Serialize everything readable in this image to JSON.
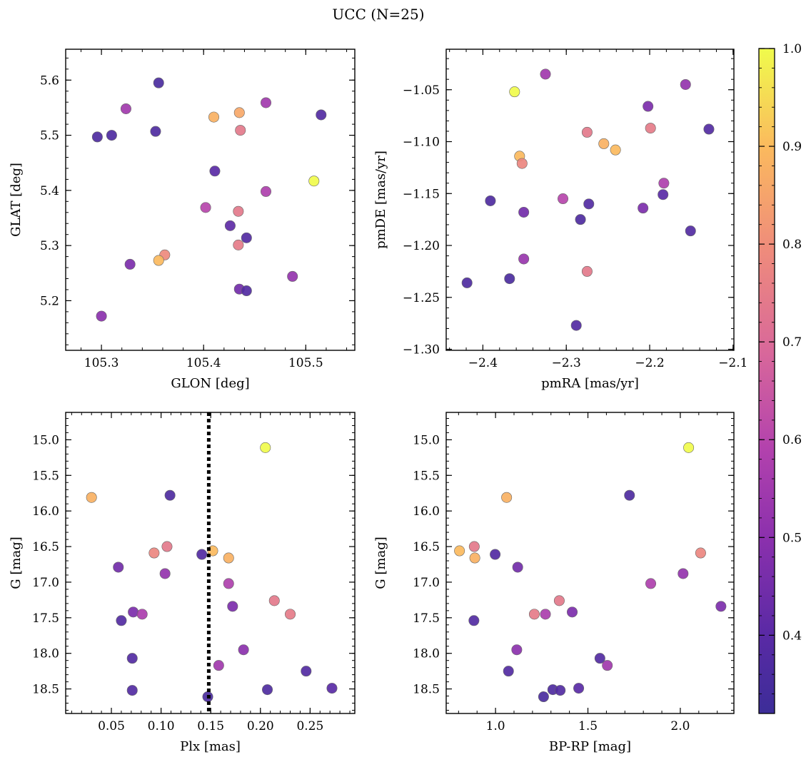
{
  "figure": {
    "title": "UCC (N=25)"
  },
  "colorbar": {
    "min": 0.32,
    "max": 1.0,
    "ticks": [
      0.4,
      0.5,
      0.6,
      0.7,
      0.8,
      0.9,
      1.0
    ],
    "tick_labels": [
      "0.4",
      "0.5",
      "0.6",
      "0.7",
      "0.8",
      "0.9",
      "1.0"
    ],
    "colormap": "plasma"
  },
  "chart_data": [
    {
      "type": "scatter",
      "id": "glon-glat",
      "title": "",
      "xlabel": "GLON [deg]",
      "ylabel": "GLAT [deg]",
      "xlim": [
        105.265,
        105.548
      ],
      "ylim": [
        5.11,
        5.656
      ],
      "invert_y": false,
      "xticks": [
        105.3,
        105.4,
        105.5
      ],
      "xtick_labels": [
        "105.3",
        "105.4",
        "105.5"
      ],
      "yticks": [
        5.2,
        5.3,
        5.4,
        5.5,
        5.6
      ],
      "ytick_labels": [
        "5.2",
        "5.3",
        "5.4",
        "5.5",
        "5.6"
      ],
      "x_minor_step": 0.02,
      "y_minor_step": 0.02,
      "points": [
        {
          "x": 105.356,
          "y": 5.595,
          "p": 0.36
        },
        {
          "x": 105.324,
          "y": 5.548,
          "p": 0.55
        },
        {
          "x": 105.296,
          "y": 5.497,
          "p": 0.37
        },
        {
          "x": 105.31,
          "y": 5.5,
          "p": 0.37
        },
        {
          "x": 105.353,
          "y": 5.507,
          "p": 0.37
        },
        {
          "x": 105.41,
          "y": 5.533,
          "p": 0.88
        },
        {
          "x": 105.435,
          "y": 5.541,
          "p": 0.86
        },
        {
          "x": 105.436,
          "y": 5.509,
          "p": 0.74
        },
        {
          "x": 105.461,
          "y": 5.559,
          "p": 0.55
        },
        {
          "x": 105.515,
          "y": 5.537,
          "p": 0.38
        },
        {
          "x": 105.411,
          "y": 5.435,
          "p": 0.4
        },
        {
          "x": 105.508,
          "y": 5.417,
          "p": 1.0
        },
        {
          "x": 105.461,
          "y": 5.398,
          "p": 0.58
        },
        {
          "x": 105.402,
          "y": 5.369,
          "p": 0.6
        },
        {
          "x": 105.434,
          "y": 5.362,
          "p": 0.74
        },
        {
          "x": 105.426,
          "y": 5.336,
          "p": 0.41
        },
        {
          "x": 105.442,
          "y": 5.314,
          "p": 0.38
        },
        {
          "x": 105.434,
          "y": 5.301,
          "p": 0.75
        },
        {
          "x": 105.362,
          "y": 5.283,
          "p": 0.79
        },
        {
          "x": 105.356,
          "y": 5.273,
          "p": 0.9
        },
        {
          "x": 105.328,
          "y": 5.266,
          "p": 0.47
        },
        {
          "x": 105.487,
          "y": 5.244,
          "p": 0.52
        },
        {
          "x": 105.435,
          "y": 5.221,
          "p": 0.45
        },
        {
          "x": 105.442,
          "y": 5.218,
          "p": 0.38
        },
        {
          "x": 105.3,
          "y": 5.172,
          "p": 0.5
        }
      ]
    },
    {
      "type": "scatter",
      "id": "pmra-pmde",
      "title": "",
      "xlabel": "pmRA [mas/yr]",
      "ylabel": "pmDE [mas/yr]",
      "xlim": [
        -2.444,
        -2.099
      ],
      "ylim": [
        -1.301,
        -1.011
      ],
      "invert_y": false,
      "xticks": [
        -2.4,
        -2.3,
        -2.2,
        -2.1
      ],
      "xtick_labels": [
        "−2.4",
        "−2.3",
        "−2.2",
        "−2.1"
      ],
      "yticks": [
        -1.3,
        -1.25,
        -1.2,
        -1.15,
        -1.1,
        -1.05
      ],
      "ytick_labels": [
        "−1.30",
        "−1.25",
        "−1.20",
        "−1.15",
        "−1.10",
        "−1.05"
      ],
      "x_minor_step": 0.02,
      "y_minor_step": 0.01,
      "points": [
        {
          "x": -2.325,
          "y": -1.035,
          "p": 0.55
        },
        {
          "x": -2.362,
          "y": -1.052,
          "p": 1.0
        },
        {
          "x": -2.157,
          "y": -1.045,
          "p": 0.52
        },
        {
          "x": -2.202,
          "y": -1.066,
          "p": 0.47
        },
        {
          "x": -2.275,
          "y": -1.091,
          "p": 0.74
        },
        {
          "x": -2.199,
          "y": -1.087,
          "p": 0.75
        },
        {
          "x": -2.129,
          "y": -1.088,
          "p": 0.38
        },
        {
          "x": -2.255,
          "y": -1.102,
          "p": 0.88
        },
        {
          "x": -2.241,
          "y": -1.108,
          "p": 0.9
        },
        {
          "x": -2.356,
          "y": -1.114,
          "p": 0.9
        },
        {
          "x": -2.353,
          "y": -1.121,
          "p": 0.78
        },
        {
          "x": -2.183,
          "y": -1.14,
          "p": 0.58
        },
        {
          "x": -2.391,
          "y": -1.157,
          "p": 0.37
        },
        {
          "x": -2.304,
          "y": -1.155,
          "p": 0.6
        },
        {
          "x": -2.273,
          "y": -1.16,
          "p": 0.38
        },
        {
          "x": -2.184,
          "y": -1.151,
          "p": 0.4
        },
        {
          "x": -2.351,
          "y": -1.168,
          "p": 0.45
        },
        {
          "x": -2.208,
          "y": -1.164,
          "p": 0.47
        },
        {
          "x": -2.283,
          "y": -1.175,
          "p": 0.37
        },
        {
          "x": -2.151,
          "y": -1.186,
          "p": 0.38
        },
        {
          "x": -2.351,
          "y": -1.213,
          "p": 0.53
        },
        {
          "x": -2.275,
          "y": -1.225,
          "p": 0.74
        },
        {
          "x": -2.419,
          "y": -1.236,
          "p": 0.37
        },
        {
          "x": -2.368,
          "y": -1.232,
          "p": 0.36
        },
        {
          "x": -2.288,
          "y": -1.277,
          "p": 0.38
        }
      ]
    },
    {
      "type": "scatter",
      "id": "plx-g",
      "title": "",
      "xlabel": "Plx [mas]",
      "ylabel": "G [mag]",
      "xlim": [
        0.004,
        0.295
      ],
      "ylim": [
        18.845,
        14.615
      ],
      "invert_y": true,
      "xticks": [
        0.05,
        0.1,
        0.15,
        0.2,
        0.25
      ],
      "xtick_labels": [
        "0.05",
        "0.10",
        "0.15",
        "0.20",
        "0.25"
      ],
      "yticks": [
        15.0,
        15.5,
        16.0,
        16.5,
        17.0,
        17.5,
        18.0,
        18.5
      ],
      "ytick_labels": [
        "15.0",
        "15.5",
        "16.0",
        "16.5",
        "17.0",
        "17.5",
        "18.0",
        "18.5"
      ],
      "x_minor_step": 0.01,
      "y_minor_step": 0.1,
      "vline": {
        "x": 0.148
      },
      "points": [
        {
          "x": 0.205,
          "y": 15.11,
          "p": 1.0
        },
        {
          "x": 0.03,
          "y": 15.81,
          "p": 0.88
        },
        {
          "x": 0.109,
          "y": 15.78,
          "p": 0.37
        },
        {
          "x": 0.106,
          "y": 16.5,
          "p": 0.74
        },
        {
          "x": 0.093,
          "y": 16.59,
          "p": 0.78
        },
        {
          "x": 0.141,
          "y": 16.61,
          "p": 0.38
        },
        {
          "x": 0.152,
          "y": 16.56,
          "p": 0.9
        },
        {
          "x": 0.168,
          "y": 16.66,
          "p": 0.88
        },
        {
          "x": 0.057,
          "y": 16.79,
          "p": 0.45
        },
        {
          "x": 0.104,
          "y": 16.88,
          "p": 0.52
        },
        {
          "x": 0.168,
          "y": 17.02,
          "p": 0.58
        },
        {
          "x": 0.214,
          "y": 17.26,
          "p": 0.74
        },
        {
          "x": 0.172,
          "y": 17.34,
          "p": 0.47
        },
        {
          "x": 0.072,
          "y": 17.42,
          "p": 0.47
        },
        {
          "x": 0.081,
          "y": 17.45,
          "p": 0.57
        },
        {
          "x": 0.23,
          "y": 17.45,
          "p": 0.75
        },
        {
          "x": 0.06,
          "y": 17.54,
          "p": 0.38
        },
        {
          "x": 0.183,
          "y": 17.95,
          "p": 0.5
        },
        {
          "x": 0.071,
          "y": 18.07,
          "p": 0.38
        },
        {
          "x": 0.158,
          "y": 18.17,
          "p": 0.55
        },
        {
          "x": 0.246,
          "y": 18.25,
          "p": 0.38
        },
        {
          "x": 0.071,
          "y": 18.52,
          "p": 0.38
        },
        {
          "x": 0.207,
          "y": 18.51,
          "p": 0.37
        },
        {
          "x": 0.272,
          "y": 18.49,
          "p": 0.4
        },
        {
          "x": 0.147,
          "y": 18.61,
          "p": 0.36
        }
      ]
    },
    {
      "type": "scatter",
      "id": "bprp-g",
      "title": "",
      "xlabel": "BP-RP [mag]",
      "ylabel": "G [mag]",
      "xlim": [
        0.733,
        2.29
      ],
      "ylim": [
        18.845,
        14.615
      ],
      "invert_y": true,
      "xticks": [
        1.0,
        1.5,
        2.0
      ],
      "xtick_labels": [
        "1.0",
        "1.5",
        "2.0"
      ],
      "yticks": [
        15.0,
        15.5,
        16.0,
        16.5,
        17.0,
        17.5,
        18.0,
        18.5
      ],
      "ytick_labels": [
        "15.0",
        "15.5",
        "16.0",
        "16.5",
        "17.0",
        "17.5",
        "18.0",
        "18.5"
      ],
      "x_minor_step": 0.1,
      "y_minor_step": 0.1,
      "points": [
        {
          "x": 2.045,
          "y": 15.11,
          "p": 1.0
        },
        {
          "x": 1.06,
          "y": 15.81,
          "p": 0.88
        },
        {
          "x": 1.725,
          "y": 15.78,
          "p": 0.37
        },
        {
          "x": 0.885,
          "y": 16.5,
          "p": 0.74
        },
        {
          "x": 0.805,
          "y": 16.56,
          "p": 0.9
        },
        {
          "x": 0.888,
          "y": 16.66,
          "p": 0.88
        },
        {
          "x": 0.998,
          "y": 16.61,
          "p": 0.38
        },
        {
          "x": 2.11,
          "y": 16.59,
          "p": 0.78
        },
        {
          "x": 1.12,
          "y": 16.79,
          "p": 0.45
        },
        {
          "x": 2.015,
          "y": 16.88,
          "p": 0.52
        },
        {
          "x": 1.84,
          "y": 17.02,
          "p": 0.58
        },
        {
          "x": 1.345,
          "y": 17.26,
          "p": 0.74
        },
        {
          "x": 2.22,
          "y": 17.34,
          "p": 0.47
        },
        {
          "x": 1.415,
          "y": 17.42,
          "p": 0.47
        },
        {
          "x": 1.21,
          "y": 17.45,
          "p": 0.75
        },
        {
          "x": 1.27,
          "y": 17.45,
          "p": 0.57
        },
        {
          "x": 0.883,
          "y": 17.54,
          "p": 0.38
        },
        {
          "x": 1.115,
          "y": 17.95,
          "p": 0.5
        },
        {
          "x": 1.565,
          "y": 18.07,
          "p": 0.38
        },
        {
          "x": 1.605,
          "y": 18.17,
          "p": 0.55
        },
        {
          "x": 1.07,
          "y": 18.25,
          "p": 0.38
        },
        {
          "x": 1.45,
          "y": 18.49,
          "p": 0.4
        },
        {
          "x": 1.31,
          "y": 18.51,
          "p": 0.37
        },
        {
          "x": 1.35,
          "y": 18.52,
          "p": 0.38
        },
        {
          "x": 1.26,
          "y": 18.61,
          "p": 0.36
        }
      ]
    }
  ]
}
